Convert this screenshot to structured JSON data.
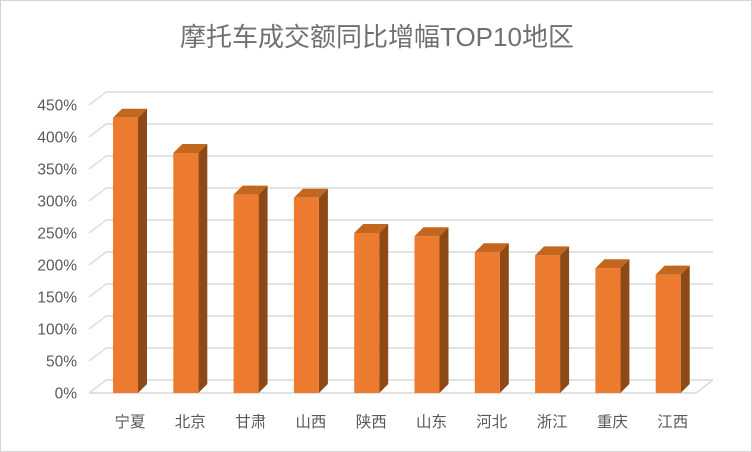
{
  "window": {
    "background_color": "#FFFFFF",
    "border_color": "#D4D4D4"
  },
  "chart_data": {
    "type": "bar",
    "variant": "3d-clustered-column",
    "title": "摩托车成交额同比增幅TOP10地区",
    "categories": [
      "宁夏",
      "北京",
      "甘肃",
      "山西",
      "陕西",
      "山东",
      "河北",
      "浙江",
      "重庆",
      "江西"
    ],
    "values": [
      430,
      375,
      310,
      305,
      250,
      245,
      220,
      215,
      195,
      185
    ],
    "unit": "%",
    "y_ticks": [
      "450%",
      "400%",
      "350%",
      "300%",
      "250%",
      "200%",
      "150%",
      "100%",
      "50%",
      "0%"
    ],
    "ylim": [
      0,
      450
    ],
    "y_step": 50,
    "xlabel": "",
    "ylabel": "",
    "grid": true,
    "legend": "none",
    "colors": {
      "bar_front": "#ED7B2F",
      "bar_top": "#C4671E",
      "bar_side": "#8E4A16",
      "gridline": "#D9D9D9",
      "axis_text": "#595959",
      "title_text": "#707070"
    }
  }
}
